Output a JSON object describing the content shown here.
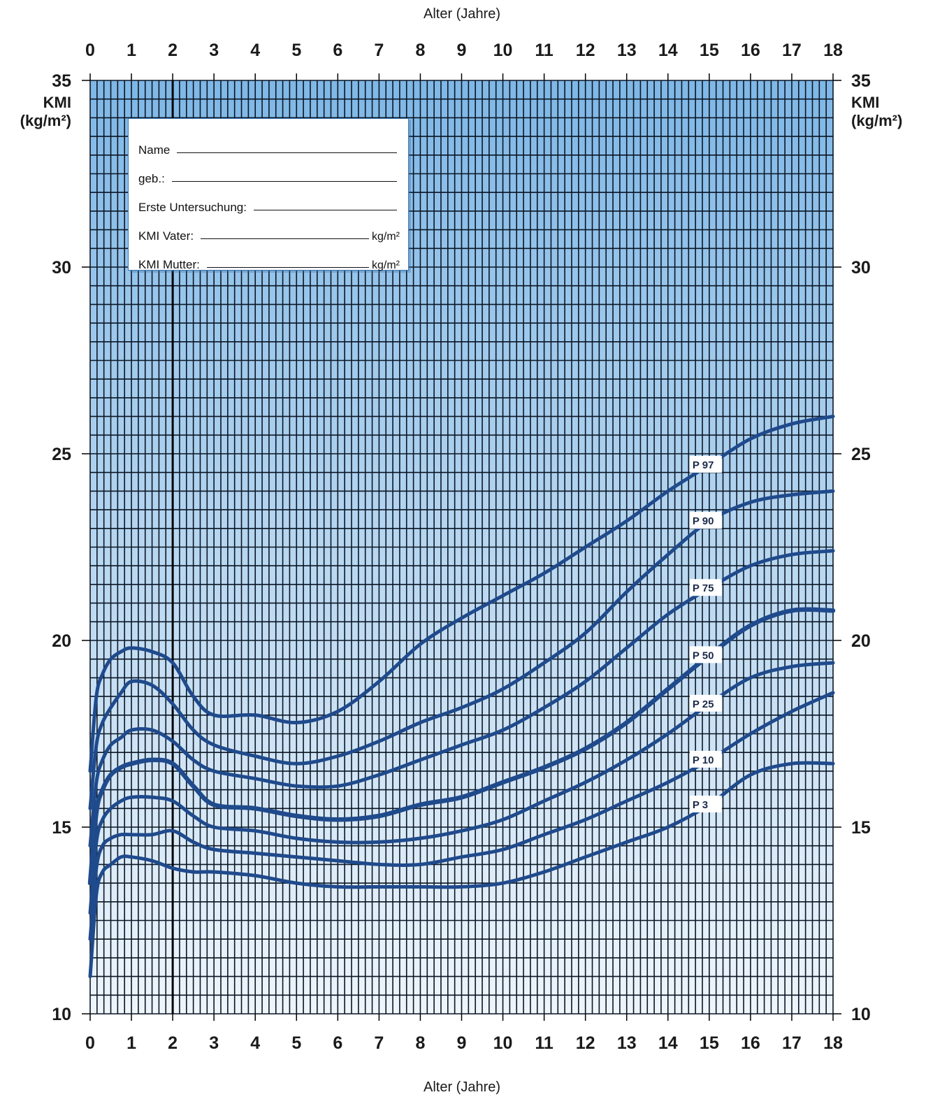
{
  "chart_data": {
    "type": "line",
    "xlabel": "Alter (Jahre)",
    "ylabel": "KMI (kg/m²)",
    "ylabel_parts": [
      "KMI",
      "(kg/m²)"
    ],
    "xlim": [
      0,
      18
    ],
    "ylim": [
      10,
      35
    ],
    "x_ticks": [
      0,
      1,
      2,
      3,
      4,
      5,
      6,
      7,
      8,
      9,
      10,
      11,
      12,
      13,
      14,
      15,
      16,
      17,
      18
    ],
    "y_ticks": [
      10,
      15,
      20,
      25,
      30,
      35
    ],
    "grid": true,
    "marker_line_x": 2,
    "series": [
      {
        "name": "P 97",
        "label": "P 97",
        "x": [
          0,
          0.15,
          0.3,
          0.5,
          0.75,
          1,
          1.5,
          2,
          2.5,
          3,
          4,
          5,
          6,
          7,
          8,
          9,
          10,
          11,
          12,
          13,
          14,
          15,
          16,
          17,
          18
        ],
        "y": [
          16.5,
          18.5,
          19.1,
          19.5,
          19.7,
          19.8,
          19.7,
          19.4,
          18.5,
          18.0,
          18.0,
          17.8,
          18.1,
          18.9,
          19.9,
          20.6,
          21.2,
          21.8,
          22.5,
          23.2,
          24.0,
          24.7,
          25.4,
          25.8,
          26.0
        ]
      },
      {
        "name": "P 90",
        "label": "P 90",
        "x": [
          0,
          0.15,
          0.3,
          0.5,
          0.75,
          1,
          1.5,
          2,
          2.5,
          3,
          4,
          5,
          6,
          7,
          8,
          9,
          10,
          11,
          12,
          13,
          14,
          15,
          16,
          17,
          18
        ],
        "y": [
          15.5,
          17.2,
          17.8,
          18.2,
          18.6,
          18.9,
          18.8,
          18.3,
          17.6,
          17.2,
          16.9,
          16.7,
          16.9,
          17.3,
          17.8,
          18.2,
          18.7,
          19.4,
          20.2,
          21.3,
          22.3,
          23.2,
          23.7,
          23.9,
          24.0
        ]
      },
      {
        "name": "P 75",
        "label": "P 75",
        "x": [
          0,
          0.15,
          0.3,
          0.5,
          0.75,
          1,
          1.5,
          2,
          2.5,
          3,
          4,
          5,
          6,
          7,
          8,
          9,
          10,
          11,
          12,
          13,
          14,
          15,
          16,
          17,
          18
        ],
        "y": [
          14.5,
          16.2,
          16.8,
          17.2,
          17.4,
          17.6,
          17.6,
          17.3,
          16.8,
          16.5,
          16.3,
          16.1,
          16.1,
          16.4,
          16.8,
          17.2,
          17.6,
          18.2,
          18.9,
          19.8,
          20.7,
          21.4,
          22.0,
          22.3,
          22.4
        ]
      },
      {
        "name": "P 50",
        "label": "P 50",
        "x": [
          0,
          0.15,
          0.3,
          0.5,
          0.75,
          1,
          1.5,
          2,
          2.5,
          3,
          4,
          5,
          6,
          7,
          8,
          9,
          10,
          11,
          12,
          13,
          14,
          15,
          16,
          17,
          18
        ],
        "y": [
          13.5,
          15.4,
          16.0,
          16.4,
          16.6,
          16.7,
          16.8,
          16.7,
          16.1,
          15.6,
          15.5,
          15.3,
          15.2,
          15.3,
          15.6,
          15.8,
          16.2,
          16.6,
          17.1,
          17.8,
          18.7,
          19.6,
          20.4,
          20.8,
          20.8
        ]
      },
      {
        "name": "P 25",
        "label": "P 25",
        "x": [
          0,
          0.15,
          0.3,
          0.5,
          0.75,
          1,
          1.5,
          2,
          2.5,
          3,
          4,
          5,
          6,
          7,
          8,
          9,
          10,
          11,
          12,
          13,
          14,
          15,
          16,
          17,
          18
        ],
        "y": [
          12.7,
          14.6,
          15.2,
          15.5,
          15.7,
          15.8,
          15.8,
          15.7,
          15.3,
          15.0,
          14.9,
          14.7,
          14.6,
          14.6,
          14.7,
          14.9,
          15.2,
          15.7,
          16.2,
          16.8,
          17.5,
          18.3,
          19.0,
          19.3,
          19.4
        ]
      },
      {
        "name": "P 10",
        "label": "P 10",
        "x": [
          0,
          0.15,
          0.3,
          0.5,
          0.75,
          1,
          1.5,
          2,
          2.5,
          3,
          4,
          5,
          6,
          7,
          8,
          9,
          10,
          11,
          12,
          13,
          14,
          15,
          16,
          17,
          18
        ],
        "y": [
          12.0,
          13.9,
          14.5,
          14.7,
          14.8,
          14.8,
          14.8,
          14.9,
          14.6,
          14.4,
          14.3,
          14.2,
          14.1,
          14.0,
          14.0,
          14.2,
          14.4,
          14.8,
          15.2,
          15.7,
          16.2,
          16.8,
          17.5,
          18.1,
          18.6
        ]
      },
      {
        "name": "P 3",
        "label": "P 3",
        "x": [
          0,
          0.15,
          0.3,
          0.5,
          0.75,
          1,
          1.5,
          2,
          2.5,
          3,
          4,
          5,
          6,
          7,
          8,
          9,
          10,
          11,
          12,
          13,
          14,
          15,
          16,
          17,
          18
        ],
        "y": [
          11.0,
          13.2,
          13.8,
          14.0,
          14.2,
          14.2,
          14.1,
          13.9,
          13.8,
          13.8,
          13.7,
          13.5,
          13.4,
          13.4,
          13.4,
          13.4,
          13.5,
          13.8,
          14.2,
          14.6,
          15.0,
          15.6,
          16.4,
          16.7,
          16.7
        ]
      }
    ]
  },
  "form": {
    "name_label": "Name",
    "born_label": "geb.:",
    "exam_label": "Erste Untersuchung:",
    "father_label": "KMI Vater:",
    "mother_label": "KMI Mutter:",
    "unit": "kg/m²"
  }
}
